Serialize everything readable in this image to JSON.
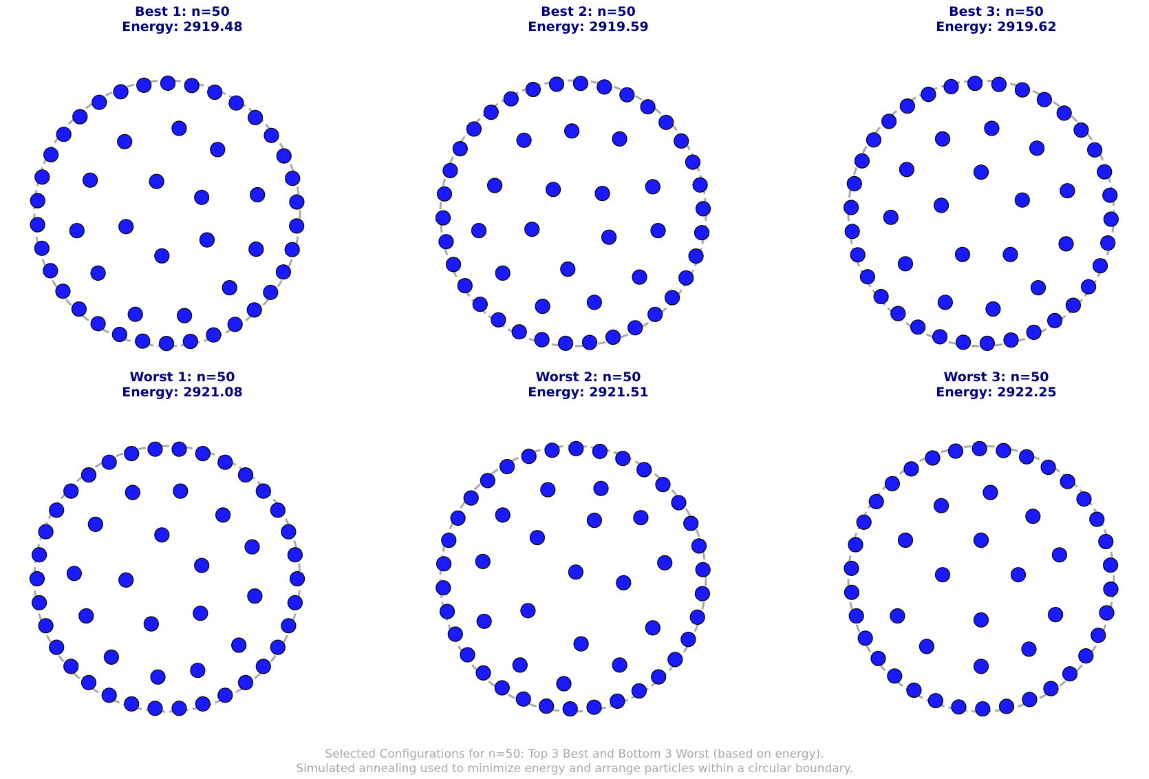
{
  "chart_data": [
    {
      "type": "scatter",
      "title_line1": "Best 1: n=50",
      "title_line2": "Energy: 2919.48",
      "boundary_color": "#a9a9a9",
      "point_color": "#1a1aff",
      "xlim": [
        -1,
        1
      ],
      "ylim": [
        -1,
        1
      ],
      "ring_offset_deg": 5,
      "interior": [
        [
          0.09,
          0.64
        ],
        [
          -0.32,
          0.54
        ],
        [
          0.38,
          0.48
        ],
        [
          -0.58,
          0.25
        ],
        [
          -0.08,
          0.24
        ],
        [
          0.26,
          0.12
        ],
        [
          0.68,
          0.14
        ],
        [
          -0.68,
          -0.13
        ],
        [
          -0.31,
          -0.1
        ],
        [
          -0.04,
          -0.32
        ],
        [
          0.3,
          -0.2
        ],
        [
          0.67,
          -0.27
        ],
        [
          -0.52,
          -0.45
        ],
        [
          0.47,
          -0.56
        ],
        [
          -0.24,
          -0.76
        ],
        [
          0.13,
          -0.77
        ]
      ]
    },
    {
      "type": "scatter",
      "title_line1": "Best 2: n=50",
      "title_line2": "Energy: 2919.59",
      "boundary_color": "#a9a9a9",
      "point_color": "#1a1aff",
      "xlim": [
        -1,
        1
      ],
      "ylim": [
        -1,
        1
      ],
      "ring_offset_deg": 2,
      "interior": [
        [
          -0.37,
          0.55
        ],
        [
          -0.01,
          0.62
        ],
        [
          0.35,
          0.56
        ],
        [
          -0.59,
          0.21
        ],
        [
          -0.15,
          0.18
        ],
        [
          0.22,
          0.15
        ],
        [
          0.6,
          0.2
        ],
        [
          -0.71,
          -0.13
        ],
        [
          -0.31,
          -0.12
        ],
        [
          0.27,
          -0.18
        ],
        [
          0.64,
          -0.13
        ],
        [
          -0.53,
          -0.45
        ],
        [
          -0.04,
          -0.42
        ],
        [
          0.5,
          -0.48
        ],
        [
          -0.23,
          -0.7
        ],
        [
          0.16,
          -0.67
        ]
      ]
    },
    {
      "type": "scatter",
      "title_line1": "Best 3: n=50",
      "title_line2": "Energy: 2919.62",
      "boundary_color": "#a9a9a9",
      "point_color": "#1a1aff",
      "xlim": [
        -1,
        1
      ],
      "ylim": [
        -1,
        1
      ],
      "ring_offset_deg": 8,
      "interior": [
        [
          0.08,
          0.64
        ],
        [
          -0.29,
          0.56
        ],
        [
          0.42,
          0.49
        ],
        [
          -0.56,
          0.33
        ],
        [
          0.0,
          0.31
        ],
        [
          -0.3,
          0.06
        ],
        [
          0.31,
          0.1
        ],
        [
          0.65,
          0.17
        ],
        [
          -0.68,
          -0.03
        ],
        [
          -0.14,
          -0.31
        ],
        [
          0.22,
          -0.31
        ],
        [
          0.64,
          -0.23
        ],
        [
          -0.57,
          -0.38
        ],
        [
          0.43,
          -0.56
        ],
        [
          -0.27,
          -0.67
        ],
        [
          0.09,
          -0.72
        ]
      ]
    },
    {
      "type": "scatter",
      "title_line1": "Worst 1: n=50",
      "title_line2": "Energy: 2921.08",
      "boundary_color": "#a9a9a9",
      "point_color": "#1a1aff",
      "xlim": [
        -1,
        1
      ],
      "ylim": [
        -1,
        1
      ],
      "ring_offset_deg": 0,
      "interior": [
        [
          -0.26,
          0.65
        ],
        [
          0.1,
          0.66
        ],
        [
          0.42,
          0.48
        ],
        [
          -0.54,
          0.41
        ],
        [
          -0.04,
          0.33
        ],
        [
          0.64,
          0.24
        ],
        [
          -0.7,
          0.04
        ],
        [
          -0.31,
          -0.01
        ],
        [
          0.26,
          0.1
        ],
        [
          0.66,
          -0.13
        ],
        [
          -0.61,
          -0.28
        ],
        [
          -0.12,
          -0.34
        ],
        [
          0.25,
          -0.26
        ],
        [
          0.54,
          -0.5
        ],
        [
          -0.42,
          -0.59
        ],
        [
          -0.07,
          -0.74
        ],
        [
          0.23,
          -0.69
        ]
      ]
    },
    {
      "type": "scatter",
      "title_line1": "Worst 2: n=50",
      "title_line2": "Energy: 2921.51",
      "boundary_color": "#a9a9a9",
      "point_color": "#1a1aff",
      "xlim": [
        -1,
        1
      ],
      "ylim": [
        -1,
        1
      ],
      "ring_offset_deg": 4,
      "interior": [
        [
          -0.19,
          0.67
        ],
        [
          0.21,
          0.68
        ],
        [
          -0.53,
          0.48
        ],
        [
          0.51,
          0.46
        ],
        [
          0.16,
          0.44
        ],
        [
          -0.27,
          0.31
        ],
        [
          -0.68,
          0.13
        ],
        [
          0.69,
          0.12
        ],
        [
          0.02,
          0.05
        ],
        [
          0.38,
          -0.03
        ],
        [
          -0.34,
          -0.24
        ],
        [
          -0.67,
          -0.32
        ],
        [
          0.6,
          -0.37
        ],
        [
          0.06,
          -0.49
        ],
        [
          0.35,
          -0.65
        ],
        [
          -0.4,
          -0.65
        ],
        [
          -0.07,
          -0.79
        ]
      ]
    },
    {
      "type": "scatter",
      "title_line1": "Worst 3: n=50",
      "title_line2": "Energy: 2922.25",
      "boundary_color": "#a9a9a9",
      "point_color": "#1a1aff",
      "xlim": [
        -1,
        1
      ],
      "ylim": [
        -1,
        1
      ],
      "ring_offset_deg": 6,
      "interior": [
        [
          0.07,
          0.65
        ],
        [
          -0.3,
          0.55
        ],
        [
          0.39,
          0.47
        ],
        [
          -0.57,
          0.29
        ],
        [
          0.0,
          0.29
        ],
        [
          0.59,
          0.18
        ],
        [
          -0.29,
          0.03
        ],
        [
          0.28,
          0.03
        ],
        [
          -0.63,
          -0.28
        ],
        [
          0.56,
          -0.27
        ],
        [
          0.0,
          -0.31
        ],
        [
          -0.41,
          -0.51
        ],
        [
          0.36,
          -0.53
        ],
        [
          0.0,
          -0.66
        ]
      ]
    }
  ],
  "caption": {
    "line1": "Selected Configurations for n=50: Top 3 Best and Bottom 3 Worst (based on energy).",
    "line2": "Simulated annealing used to minimize energy and arrange particles within a circular boundary."
  }
}
